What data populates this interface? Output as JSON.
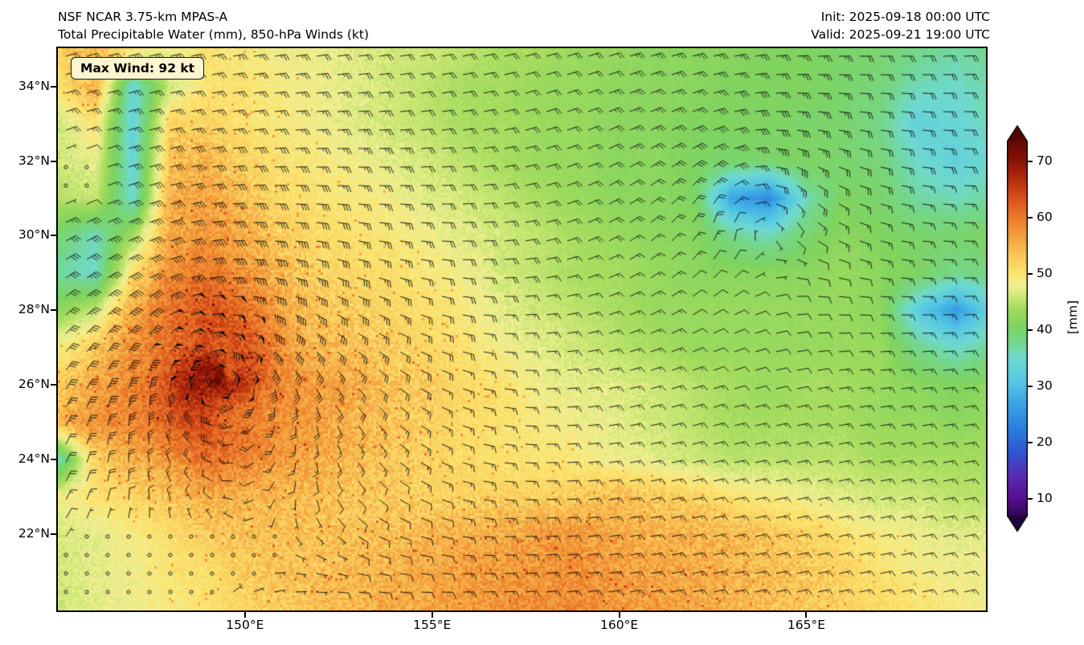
{
  "header": {
    "title_line1": "NSF NCAR 3.75-km MPAS-A",
    "title_line2": "Total Precipitable Water (mm), 850-hPa Winds (kt)",
    "init_label": "Init: 2025-09-18 00:00 UTC",
    "valid_label": "Valid: 2025-09-21 19:00 UTC"
  },
  "map": {
    "max_wind_label": "Max Wind: 92 kt"
  },
  "colorbar": {
    "label": "[mm]",
    "ticks": [
      10,
      20,
      30,
      40,
      50,
      60,
      70
    ]
  },
  "chart_data": {
    "type": "heatmap",
    "title": "Total Precipitable Water (mm), 850-hPa Winds (kt)",
    "model": "NSF NCAR 3.75-km MPAS-A",
    "init_time": "2025-09-18 00:00 UTC",
    "valid_time": "2025-09-21 19:00 UTC",
    "field_units": "mm",
    "wind_units": "kt",
    "max_wind_kt": 92,
    "extent": {
      "lon_min": 145.0,
      "lon_max": 169.8,
      "lat_min": 19.95,
      "lat_max": 35.03
    },
    "x_ticks": [
      {
        "v": 150,
        "label": "150°E"
      },
      {
        "v": 155,
        "label": "155°E"
      },
      {
        "v": 160,
        "label": "160°E"
      },
      {
        "v": 165,
        "label": "165°E"
      }
    ],
    "y_ticks": [
      {
        "v": 34,
        "label": "34°N"
      },
      {
        "v": 32,
        "label": "32°N"
      },
      {
        "v": 30,
        "label": "30°N"
      },
      {
        "v": 28,
        "label": "28°N"
      },
      {
        "v": 26,
        "label": "26°N"
      },
      {
        "v": 24,
        "label": "24°N"
      },
      {
        "v": 22,
        "label": "22°N"
      }
    ],
    "colormap_stops": [
      {
        "v": 6,
        "c": "#20043c"
      },
      {
        "v": 10,
        "c": "#570c8f"
      },
      {
        "v": 14,
        "c": "#5a2ab1"
      },
      {
        "v": 18,
        "c": "#3152cf"
      },
      {
        "v": 22,
        "c": "#2a79dd"
      },
      {
        "v": 27,
        "c": "#3aa5e4"
      },
      {
        "v": 31,
        "c": "#55c8e4"
      },
      {
        "v": 35,
        "c": "#6fd9cf"
      },
      {
        "v": 38,
        "c": "#74d689"
      },
      {
        "v": 41,
        "c": "#7fd35f"
      },
      {
        "v": 44,
        "c": "#a5dc5e"
      },
      {
        "v": 46,
        "c": "#cfe878"
      },
      {
        "v": 48,
        "c": "#f0ee92"
      },
      {
        "v": 50,
        "c": "#fbe46f"
      },
      {
        "v": 53,
        "c": "#f9c95b"
      },
      {
        "v": 56,
        "c": "#f5a843"
      },
      {
        "v": 59,
        "c": "#ee8630"
      },
      {
        "v": 62,
        "c": "#e16322"
      },
      {
        "v": 65,
        "c": "#c93f15"
      },
      {
        "v": 68,
        "c": "#a3200b"
      },
      {
        "v": 71,
        "c": "#7d0f05"
      },
      {
        "v": 75,
        "c": "#540703"
      }
    ],
    "grid": {
      "lon_start": 145,
      "lon_step": 1,
      "lat_start": 35,
      "lat_step": -1,
      "lons": [
        145,
        146,
        147,
        148,
        149,
        150,
        151,
        152,
        153,
        154,
        155,
        156,
        157,
        158,
        159,
        160,
        161,
        162,
        163,
        164,
        165,
        166,
        167,
        168,
        169,
        170
      ],
      "lats": [
        35,
        34,
        33,
        32,
        31,
        30,
        29,
        28,
        27,
        26,
        25,
        24,
        23,
        22,
        21,
        20
      ],
      "values": [
        [
          52,
          54,
          50,
          48,
          50,
          49,
          48,
          48,
          47,
          46,
          46,
          45,
          44,
          44,
          43,
          43,
          42,
          42,
          42,
          41,
          41,
          40,
          40,
          38,
          37,
          38
        ],
        [
          50,
          55,
          34,
          46,
          50,
          50,
          49,
          48,
          47,
          46,
          45,
          44,
          44,
          43,
          43,
          42,
          42,
          42,
          41,
          41,
          41,
          40,
          39,
          36,
          35,
          37
        ],
        [
          46,
          50,
          33,
          52,
          52,
          50,
          49,
          48,
          47,
          46,
          45,
          44,
          44,
          43,
          43,
          42,
          42,
          41,
          41,
          41,
          40,
          40,
          38,
          33,
          34,
          36
        ],
        [
          46,
          48,
          34,
          54,
          55,
          52,
          50,
          49,
          48,
          47,
          46,
          45,
          44,
          43,
          43,
          42,
          42,
          41,
          40,
          40,
          41,
          40,
          39,
          35,
          33,
          35
        ],
        [
          45,
          46,
          35,
          56,
          57,
          54,
          51,
          50,
          49,
          48,
          47,
          46,
          45,
          44,
          43,
          42,
          42,
          41,
          27,
          24,
          36,
          41,
          40,
          37,
          36,
          37
        ],
        [
          40,
          36,
          44,
          56,
          58,
          56,
          53,
          51,
          50,
          49,
          48,
          47,
          46,
          45,
          44,
          43,
          42,
          42,
          38,
          36,
          40,
          42,
          41,
          40,
          40,
          41
        ],
        [
          37,
          35,
          50,
          58,
          60,
          58,
          55,
          52,
          51,
          50,
          49,
          48,
          46,
          45,
          44,
          44,
          43,
          42,
          42,
          42,
          42,
          43,
          42,
          41,
          38,
          39
        ],
        [
          42,
          45,
          55,
          60,
          62,
          60,
          57,
          54,
          52,
          51,
          50,
          49,
          47,
          46,
          45,
          44,
          43,
          43,
          43,
          43,
          43,
          43,
          42,
          32,
          26,
          34
        ],
        [
          48,
          52,
          58,
          62,
          66,
          62,
          58,
          55,
          53,
          52,
          51,
          50,
          48,
          47,
          46,
          45,
          44,
          43,
          43,
          43,
          43,
          43,
          43,
          38,
          35,
          38
        ],
        [
          52,
          56,
          60,
          64,
          70,
          64,
          60,
          57,
          55,
          53,
          52,
          51,
          50,
          48,
          47,
          47,
          46,
          45,
          44,
          43,
          44,
          44,
          43,
          42,
          41,
          42
        ],
        [
          54,
          58,
          60,
          62,
          63,
          61,
          58,
          56,
          54,
          53,
          52,
          51,
          50,
          49,
          48,
          47,
          46,
          45,
          44,
          44,
          44,
          44,
          43,
          43,
          42,
          43
        ],
        [
          35,
          52,
          56,
          58,
          60,
          58,
          56,
          55,
          54,
          53,
          52,
          51,
          50,
          50,
          49,
          48,
          47,
          46,
          45,
          45,
          45,
          45,
          44,
          44,
          44,
          44
        ],
        [
          48,
          50,
          52,
          54,
          56,
          55,
          54,
          54,
          53,
          53,
          52,
          52,
          52,
          52,
          53,
          54,
          53,
          52,
          50,
          49,
          48,
          47,
          46,
          46,
          45,
          45
        ],
        [
          46,
          47,
          49,
          51,
          53,
          54,
          54,
          54,
          54,
          54,
          55,
          55,
          56,
          57,
          57,
          56,
          55,
          55,
          54,
          53,
          52,
          50,
          49,
          48,
          47,
          47
        ],
        [
          46,
          47,
          48,
          50,
          51,
          53,
          54,
          54,
          55,
          55,
          56,
          57,
          57,
          58,
          58,
          57,
          56,
          56,
          55,
          54,
          53,
          52,
          50,
          49,
          48,
          48
        ],
        [
          46,
          47,
          48,
          49,
          50,
          52,
          53,
          54,
          55,
          56,
          56,
          57,
          58,
          58,
          58,
          57,
          57,
          56,
          55,
          54,
          53,
          52,
          51,
          50,
          49,
          48
        ]
      ]
    },
    "cyclones": [
      {
        "name": "primary-typhoon",
        "lon": 149.3,
        "lat": 26.2,
        "max_wind_kt": 82,
        "rmax_deg": 0.6
      },
      {
        "name": "secondary-low",
        "lon": 163.6,
        "lat": 31.2,
        "max_wind_kt": 18,
        "rmax_deg": 1.3
      }
    ],
    "background_wind": {
      "u_kt": -17,
      "v_kt": -4
    },
    "calm_zones": [
      {
        "lon": 146.8,
        "lat": 21.0,
        "rx": 3.2,
        "ry": 1.6
      },
      {
        "lon": 145.3,
        "lat": 31.6,
        "rx": 1.0,
        "ry": 1.0
      }
    ],
    "barb_spacing_px": {
      "x": 26,
      "y": 23
    }
  }
}
